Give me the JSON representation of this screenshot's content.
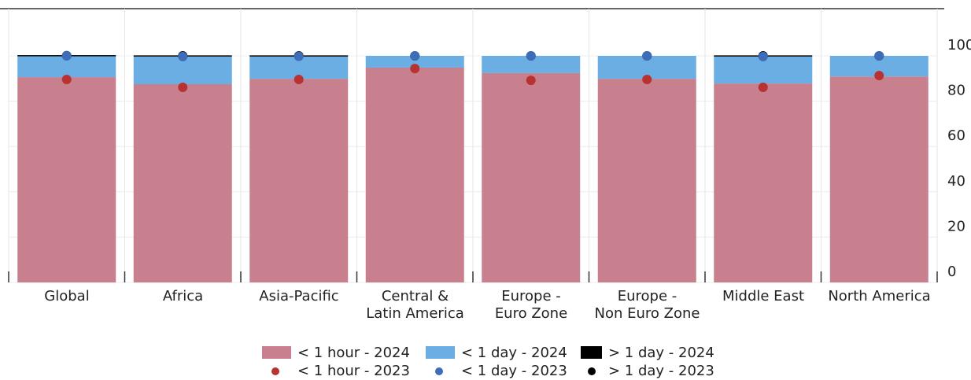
{
  "chart_data": {
    "type": "bar",
    "categories": [
      "Global",
      "Africa",
      "Asia-Pacific",
      "Central &\nLatin America",
      "Europe -\nEuro Zone",
      "Europe -\nNon Euro Zone",
      "Middle East",
      "North America"
    ],
    "series": [
      {
        "name": "< 1 hour - 2024",
        "type": "bar",
        "color": "#c8808f",
        "values": [
          90.6,
          87.5,
          89.9,
          94.8,
          92.4,
          89.9,
          87.8,
          90.9
        ]
      },
      {
        "name": "< 1 day - 2024",
        "type": "bar",
        "color": "#6aaee4",
        "values": [
          9.2,
          12.2,
          9.8,
          5.2,
          7.6,
          10.1,
          11.9,
          9.1
        ]
      },
      {
        "name": "> 1 day - 2024",
        "type": "bar",
        "color": "#000000",
        "values": [
          0.2,
          0.3,
          0.3,
          0,
          0,
          0,
          0.3,
          0
        ]
      },
      {
        "name": "< 1 hour - 2023",
        "type": "scatter",
        "color": "#b83232",
        "values": [
          89.6,
          86.1,
          89.6,
          94.4,
          89.2,
          89.6,
          86.1,
          91.3
        ]
      },
      {
        "name": "< 1 day - 2023",
        "type": "scatter",
        "color": "#3d6cb9",
        "values": [
          10.4,
          13.6,
          10.2,
          5.6,
          10.8,
          10.4,
          13.6,
          8.7
        ]
      },
      {
        "name": "> 1 day - 2023",
        "type": "scatter",
        "color": "#000000",
        "values": [
          0.1,
          0.3,
          0.2,
          0,
          0,
          0,
          0.3,
          0
        ]
      }
    ],
    "ylim": [
      0,
      100
    ],
    "yticks": [
      0,
      20,
      40,
      60,
      80,
      100
    ],
    "grid": true
  }
}
